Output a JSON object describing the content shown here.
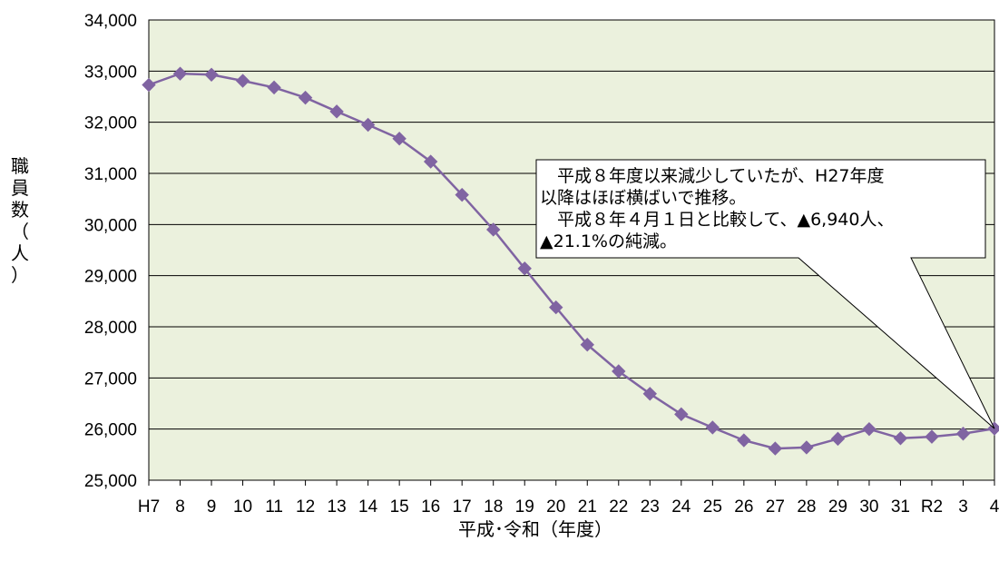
{
  "chart_data": {
    "type": "line",
    "categories": [
      "H7",
      "8",
      "9",
      "10",
      "11",
      "12",
      "13",
      "14",
      "15",
      "16",
      "17",
      "18",
      "19",
      "20",
      "21",
      "22",
      "23",
      "24",
      "25",
      "26",
      "27",
      "28",
      "29",
      "30",
      "31",
      "R2",
      "3",
      "4"
    ],
    "series": [
      {
        "values": [
          32730,
          32950,
          32930,
          32810,
          32680,
          32480,
          32210,
          31950,
          31680,
          31230,
          30580,
          29900,
          29140,
          28380,
          27650,
          27130,
          26690,
          26290,
          26030,
          25780,
          25620,
          25640,
          25810,
          26000,
          25820,
          25850,
          25910,
          26010
        ]
      }
    ],
    "ylim": [
      25000,
      34000
    ],
    "yticks": [
      25000,
      26000,
      27000,
      28000,
      29000,
      30000,
      31000,
      32000,
      33000,
      34000
    ],
    "ytick_labels": [
      "25,000",
      "26,000",
      "27,000",
      "28,000",
      "29,000",
      "30,000",
      "31,000",
      "32,000",
      "33,000",
      "34,000"
    ],
    "xlabel": "平成･令和（年度）",
    "ylabel_chars": [
      "職",
      "員",
      "数",
      "（",
      "人",
      "）"
    ],
    "grid": true,
    "annotation": {
      "lines": [
        "　平成８年度以来減少していたが、H27年度",
        "以降はほぼ横ばいで推移。",
        "　平成８年４月１日と比較して、▲6,940人、",
        "▲21.1%の純減。"
      ],
      "points_to": "4"
    },
    "colors": {
      "plot_bg": "#ebf1dd",
      "line": "#8064a2",
      "marker": "#8064a2",
      "grid": "#000000"
    }
  }
}
